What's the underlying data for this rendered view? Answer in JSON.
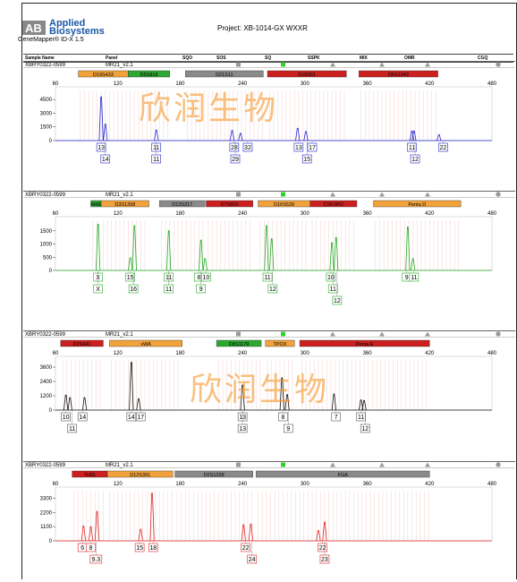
{
  "header": {
    "brand_line1": "Applied",
    "brand_line2": "Biosystems",
    "software": "GeneMapper® ID-X 1.5",
    "project": "Project: XB-1014-GX WXXR",
    "logo_text": "AB"
  },
  "columns": [
    "Sample Name",
    "Panel",
    "SQO",
    "SOS",
    "SQ",
    "SSPK",
    "MIX",
    "OMR",
    "CGQ"
  ],
  "watermark": "欣润生物",
  "panels": [
    {
      "sample": "XBRY0322-0599",
      "panel_name": "MR21_v2.1",
      "dye_color": "#2222cc",
      "x_ticks": [
        60,
        120,
        180,
        240,
        300,
        360,
        420,
        480
      ],
      "y_ticks": [
        1500,
        3000,
        4500
      ],
      "y_max": 5500,
      "loci": [
        {
          "name": "D19S433",
          "start": 82,
          "end": 130,
          "color": "#f2a23a"
        },
        {
          "name": "D5S818",
          "start": 130,
          "end": 170,
          "color": "#2fa832"
        },
        {
          "name": "D21S11",
          "start": 185,
          "end": 260,
          "color": "#8a8a8a"
        },
        {
          "name": "D18S51",
          "start": 264,
          "end": 340,
          "color": "#cc1f1f"
        },
        {
          "name": "D6S1043",
          "start": 352,
          "end": 428,
          "color": "#cc1f1f"
        }
      ],
      "peaks": [
        {
          "x": 104,
          "h": 4800
        },
        {
          "x": 108,
          "h": 1800
        },
        {
          "x": 157,
          "h": 1150
        },
        {
          "x": 230,
          "h": 1100
        },
        {
          "x": 238,
          "h": 800
        },
        {
          "x": 293,
          "h": 1350
        },
        {
          "x": 301,
          "h": 1000
        },
        {
          "x": 403,
          "h": 1050
        },
        {
          "x": 405,
          "h": 1050
        },
        {
          "x": 429,
          "h": 650
        }
      ],
      "calls_row1": [
        {
          "x": 104,
          "t": "13"
        },
        {
          "x": 157,
          "t": "11"
        },
        {
          "x": 232,
          "t": "28"
        },
        {
          "x": 245,
          "t": "32"
        },
        {
          "x": 294,
          "t": "13"
        },
        {
          "x": 307,
          "t": "17"
        },
        {
          "x": 403,
          "t": "11"
        },
        {
          "x": 433,
          "t": "22"
        }
      ],
      "calls_row2": [
        {
          "x": 108,
          "t": "14"
        },
        {
          "x": 157,
          "t": "11"
        },
        {
          "x": 233,
          "t": "29"
        },
        {
          "x": 302,
          "t": "15"
        },
        {
          "x": 406,
          "t": "12"
        }
      ]
    },
    {
      "sample": "XBRY0322-0599",
      "panel_name": "MR21_v2.1",
      "dye_color": "#22aa22",
      "x_ticks": [
        60,
        120,
        180,
        240,
        300,
        360,
        420,
        480
      ],
      "y_ticks": [
        500,
        1000,
        1500
      ],
      "y_max": 1900,
      "loci": [
        {
          "name": "AME",
          "start": 94,
          "end": 104,
          "color": "#2fa832"
        },
        {
          "name": "D3S1358",
          "start": 104,
          "end": 150,
          "color": "#f2a23a"
        },
        {
          "name": "D13S317",
          "start": 160,
          "end": 204,
          "color": "#8a8a8a"
        },
        {
          "name": "D7S820",
          "start": 205,
          "end": 250,
          "color": "#cc1f1f"
        },
        {
          "name": "D16S539",
          "start": 255,
          "end": 305,
          "color": "#f2a23a"
        },
        {
          "name": "CSF1PO",
          "start": 305,
          "end": 350,
          "color": "#cc1f1f"
        },
        {
          "name": "Penta D",
          "start": 366,
          "end": 450,
          "color": "#f2a23a"
        }
      ],
      "peaks": [
        {
          "x": 101,
          "h": 1750
        },
        {
          "x": 132,
          "h": 480
        },
        {
          "x": 136,
          "h": 1700
        },
        {
          "x": 169,
          "h": 1500
        },
        {
          "x": 200,
          "h": 1150
        },
        {
          "x": 204,
          "h": 450
        },
        {
          "x": 263,
          "h": 1700
        },
        {
          "x": 268,
          "h": 1200
        },
        {
          "x": 326,
          "h": 1050
        },
        {
          "x": 330,
          "h": 1250
        },
        {
          "x": 399,
          "h": 1650
        },
        {
          "x": 404,
          "h": 450
        }
      ],
      "calls_row1": [
        {
          "x": 101,
          "t": "X"
        },
        {
          "x": 132,
          "t": "15"
        },
        {
          "x": 169,
          "t": "11"
        },
        {
          "x": 198,
          "t": "8"
        },
        {
          "x": 205,
          "t": "10"
        },
        {
          "x": 264,
          "t": "11"
        },
        {
          "x": 325,
          "t": "10"
        },
        {
          "x": 398,
          "t": "9"
        },
        {
          "x": 405,
          "t": "11"
        }
      ],
      "calls_row2": [
        {
          "x": 101,
          "t": "X"
        },
        {
          "x": 135,
          "t": "16"
        },
        {
          "x": 169,
          "t": "11"
        },
        {
          "x": 200,
          "t": "9"
        },
        {
          "x": 269,
          "t": "12"
        },
        {
          "x": 327,
          "t": "11"
        }
      ],
      "calls_row3": [
        {
          "x": 331,
          "t": "12"
        }
      ]
    },
    {
      "sample": "XBRY0322-0599",
      "panel_name": "MR21_v2.1",
      "dye_color": "#111111",
      "x_ticks": [
        60,
        120,
        180,
        240,
        300,
        360,
        420,
        480
      ],
      "y_ticks": [
        1200,
        2400,
        3600
      ],
      "y_max": 4200,
      "loci": [
        {
          "name": "D2S441",
          "start": 65,
          "end": 106,
          "color": "#cc1f1f"
        },
        {
          "name": "vWA",
          "start": 112,
          "end": 182,
          "color": "#f2a23a"
        },
        {
          "name": "D8S1179",
          "start": 215,
          "end": 258,
          "color": "#2fa832"
        },
        {
          "name": "TPOX",
          "start": 262,
          "end": 290,
          "color": "#f2a23a"
        },
        {
          "name": "Penta E",
          "start": 295,
          "end": 420,
          "color": "#cc1f1f"
        }
      ],
      "peaks": [
        {
          "x": 70,
          "h": 1250
        },
        {
          "x": 74,
          "h": 1050
        },
        {
          "x": 88,
          "h": 1050
        },
        {
          "x": 133,
          "h": 4000
        },
        {
          "x": 140,
          "h": 950
        },
        {
          "x": 240,
          "h": 2100
        },
        {
          "x": 278,
          "h": 2700
        },
        {
          "x": 283,
          "h": 1300
        },
        {
          "x": 328,
          "h": 1350
        },
        {
          "x": 354,
          "h": 850
        },
        {
          "x": 357,
          "h": 800
        }
      ],
      "calls_row1": [
        {
          "x": 70,
          "t": "10"
        },
        {
          "x": 86,
          "t": "14"
        },
        {
          "x": 133,
          "t": "14"
        },
        {
          "x": 142,
          "t": "17"
        },
        {
          "x": 240,
          "t": "13"
        },
        {
          "x": 279,
          "t": "8"
        },
        {
          "x": 330,
          "t": "7"
        },
        {
          "x": 354,
          "t": "11"
        }
      ],
      "calls_row2": [
        {
          "x": 76,
          "t": "11"
        },
        {
          "x": 240,
          "t": "13"
        },
        {
          "x": 284,
          "t": "9"
        },
        {
          "x": 358,
          "t": "12"
        }
      ]
    },
    {
      "sample": "XBRY0322-0599",
      "panel_name": "MR21_v2.1",
      "dye_color": "#dd2222",
      "x_ticks": [
        60,
        120,
        180,
        240,
        300,
        360,
        420,
        480
      ],
      "y_ticks": [
        1100,
        2200,
        3300
      ],
      "y_max": 3900,
      "loci": [
        {
          "name": "TH01",
          "start": 76,
          "end": 110,
          "color": "#cc1f1f"
        },
        {
          "name": "D12S391",
          "start": 110,
          "end": 173,
          "color": "#f2a23a"
        },
        {
          "name": "D2S1338",
          "start": 175,
          "end": 250,
          "color": "#8a8a8a"
        },
        {
          "name": "FGA",
          "start": 253,
          "end": 420,
          "color": "#8a8a8a"
        }
      ],
      "peaks": [
        {
          "x": 87,
          "h": 1150
        },
        {
          "x": 94,
          "h": 1100
        },
        {
          "x": 100,
          "h": 2300
        },
        {
          "x": 142,
          "h": 900
        },
        {
          "x": 153,
          "h": 3700
        },
        {
          "x": 241,
          "h": 1250
        },
        {
          "x": 248,
          "h": 1300
        },
        {
          "x": 313,
          "h": 800
        },
        {
          "x": 319,
          "h": 1450
        }
      ],
      "calls_row1": [
        {
          "x": 86,
          "t": "6"
        },
        {
          "x": 94,
          "t": "8"
        },
        {
          "x": 141,
          "t": "15"
        },
        {
          "x": 154,
          "t": "18"
        },
        {
          "x": 243,
          "t": "22"
        },
        {
          "x": 317,
          "t": "22"
        }
      ],
      "calls_row2": [
        {
          "x": 99,
          "t": "9.3"
        },
        {
          "x": 249,
          "t": "24"
        },
        {
          "x": 319,
          "t": "23"
        }
      ]
    }
  ]
}
